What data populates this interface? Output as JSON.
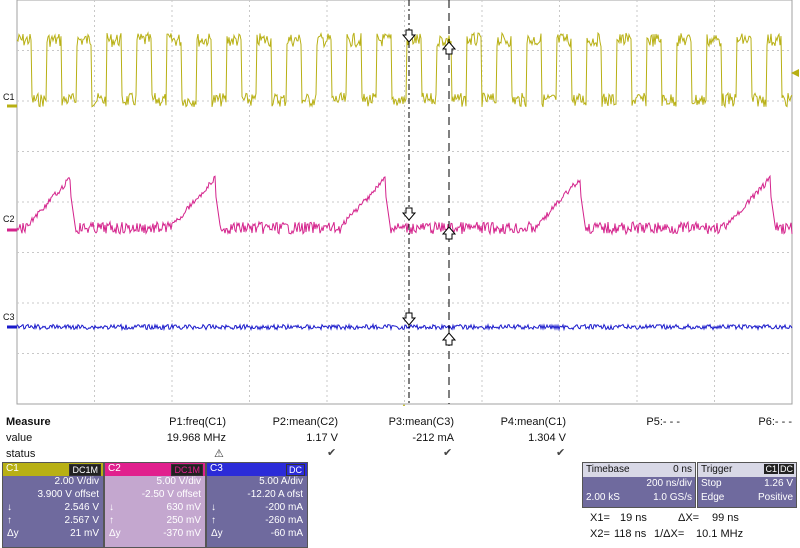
{
  "channels": [
    {
      "name": "C1",
      "color": "#b8b014"
    },
    {
      "name": "C2",
      "color": "#d4238c"
    },
    {
      "name": "C3",
      "color": "#1a1acb"
    }
  ],
  "measure": {
    "header": "Measure",
    "row_value": "value",
    "row_status": "status",
    "params": [
      {
        "name": "P1:freq(C1)",
        "value": "19.968 MHz",
        "status": "warning"
      },
      {
        "name": "P2:mean(C2)",
        "value": "1.17 V",
        "status": "ok"
      },
      {
        "name": "P3:mean(C3)",
        "value": "-212 mA",
        "status": "ok"
      },
      {
        "name": "P4:mean(C1)",
        "value": "1.304 V",
        "status": "ok"
      },
      {
        "name": "P5:- - -",
        "value": "",
        "status": ""
      },
      {
        "name": "P6:- - -",
        "value": "",
        "status": ""
      }
    ]
  },
  "ch_boxes": [
    {
      "name": "C1",
      "coupling": "DC1M",
      "color": "#b8b014",
      "bg": "#6f6a9e",
      "scale": "2.00 V/div",
      "offset": "3.900 V offset",
      "r1l": "↓",
      "r1": "2.546 V",
      "r2l": "↑",
      "r2": "2.567 V",
      "r3l": "Δy",
      "r3": "21 mV"
    },
    {
      "name": "C2",
      "coupling": "DC1M",
      "color": "#e1208e",
      "bg": "#c4a7cf",
      "scale": "5.00 V/div",
      "offset": "-2.50 V offset",
      "r1l": "↓",
      "r1": "630 mV",
      "r2l": "↑",
      "r2": "250 mV",
      "r3l": "Δy",
      "r3": "-370 mV"
    },
    {
      "name": "C3",
      "coupling": "DC",
      "color": "#2b2bd8",
      "bg": "#6f6a9e",
      "scale": "5.00 A/div",
      "offset": "-12.20 A ofst",
      "r1l": "↓",
      "r1": "-200 mA",
      "r2l": "↑",
      "r2": "-260 mA",
      "r3l": "Δy",
      "r3": "-60 mA"
    }
  ],
  "timebase": {
    "label": "Timebase",
    "delay": "0 ns",
    "tdiv": "200 ns/div",
    "samples": "2.00 kS",
    "rate": "1.0 GS/s"
  },
  "trigger": {
    "label": "Trigger",
    "chan": "C1",
    "coupling": "DC",
    "mode": "Stop",
    "level": "1.26 V",
    "type": "Edge",
    "slope": "Positive"
  },
  "cursors": {
    "x1_label": "X1=",
    "x1": "19 ns",
    "dx_label": "ΔX=",
    "dx": "99 ns",
    "x2_label": "X2=",
    "x2": "118 ns",
    "inv_label": "1/ΔX=",
    "inv": "10.1 MHz"
  }
}
